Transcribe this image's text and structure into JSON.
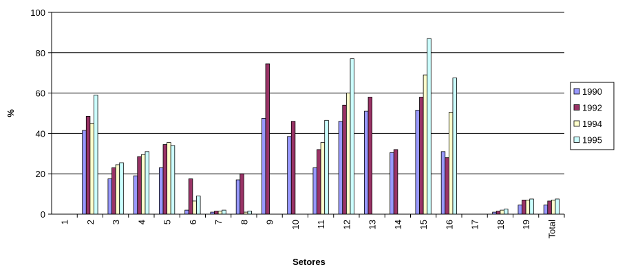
{
  "chart_data": {
    "type": "bar",
    "title": "",
    "xlabel": "Setores",
    "ylabel": "%",
    "ylim": [
      0,
      100
    ],
    "yticks": [
      0,
      20,
      40,
      60,
      80,
      100
    ],
    "grid": true,
    "legend_position": "right",
    "categories": [
      "1",
      "2",
      "3",
      "4",
      "5",
      "6",
      "7",
      "8",
      "9",
      "10",
      "11",
      "12",
      "13",
      "14",
      "15",
      "16",
      "17",
      "18",
      "19",
      "Total"
    ],
    "series": [
      {
        "name": "1990",
        "color": "#9999ff",
        "values": [
          0,
          41.5,
          17.5,
          19,
          23,
          2,
          1,
          17,
          47.5,
          38.5,
          23,
          46,
          51,
          30.5,
          51.5,
          31,
          0,
          1,
          4.5,
          4.5
        ]
      },
      {
        "name": "1992",
        "color": "#993366",
        "values": [
          0,
          48.5,
          23,
          28.5,
          34.5,
          17.5,
          1.5,
          20,
          74.5,
          46,
          32,
          54,
          58,
          32,
          58,
          28,
          0,
          1.5,
          7,
          6.5
        ]
      },
      {
        "name": "1994",
        "color": "#ffffcc",
        "values": [
          0,
          45,
          24.5,
          29.5,
          35.5,
          6.5,
          1.5,
          1,
          0,
          0,
          35.5,
          60,
          0,
          0,
          69,
          50.5,
          0,
          2,
          7,
          7
        ]
      },
      {
        "name": "1995",
        "color": "#ccffff",
        "values": [
          0,
          59,
          25.5,
          31,
          34,
          9,
          2,
          1.5,
          0,
          0,
          46.5,
          77,
          0,
          0,
          87,
          67.5,
          0,
          2.5,
          7.5,
          7.5
        ]
      }
    ]
  }
}
